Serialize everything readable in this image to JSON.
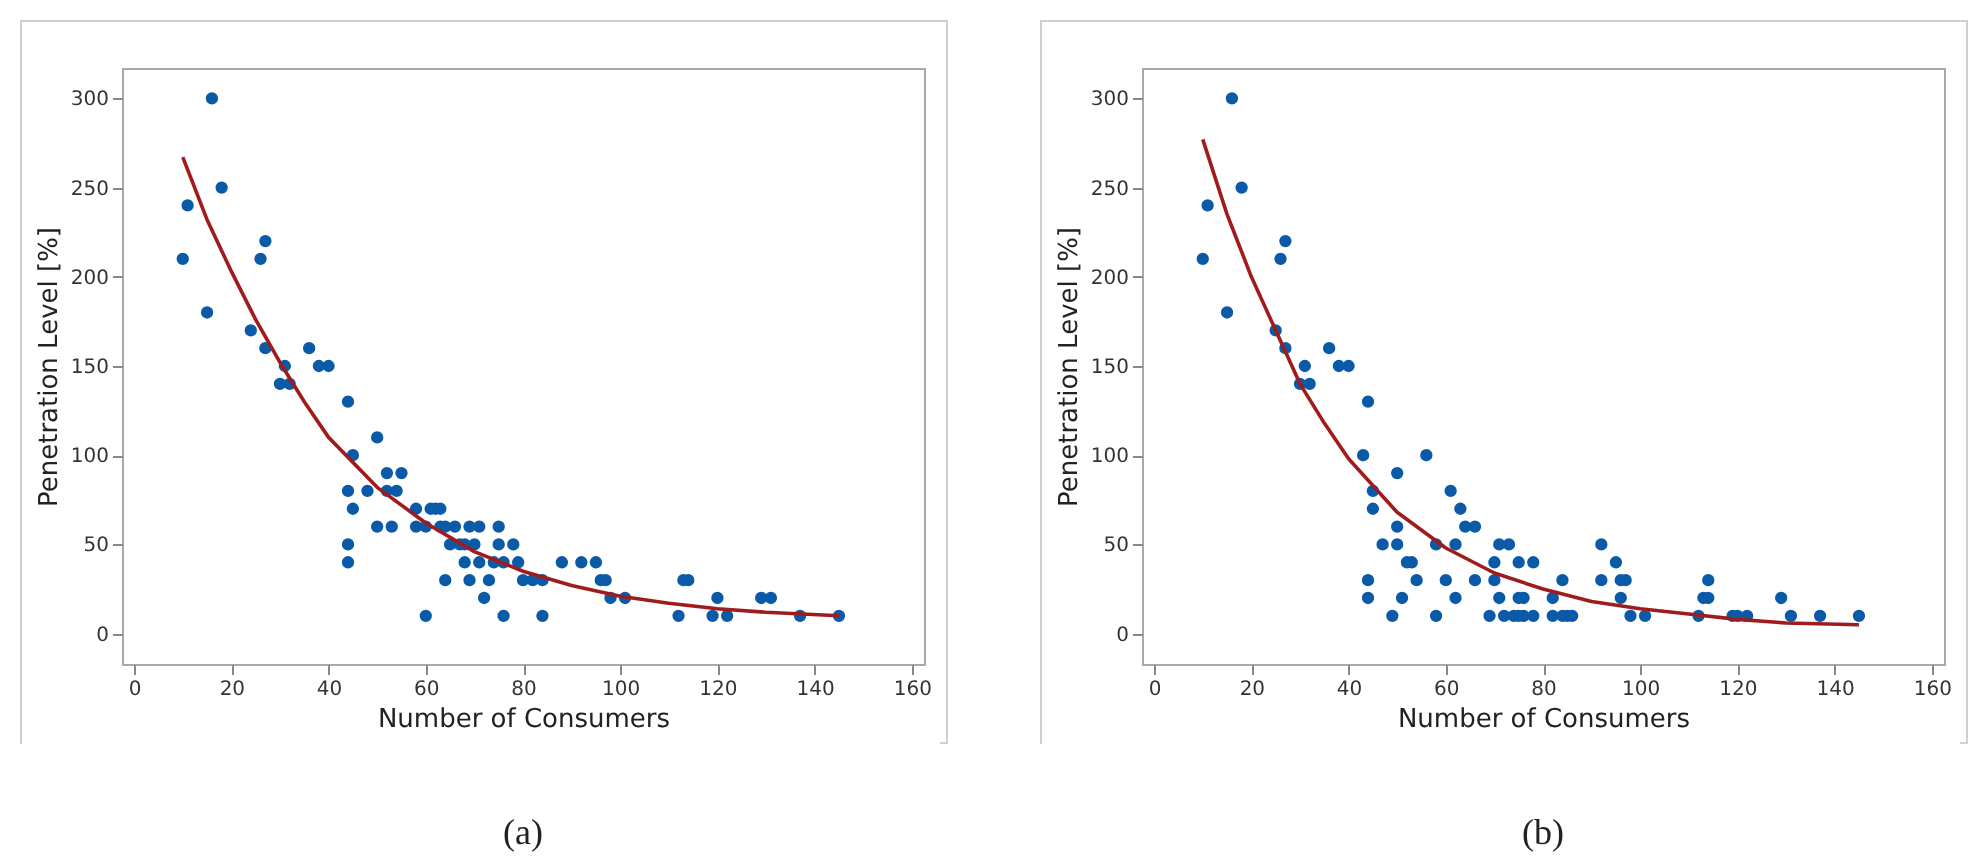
{
  "chart_data": [
    {
      "type": "scatter",
      "title": "(a)",
      "xlabel": "Number of Consumers",
      "ylabel": "Penetration Level [%]",
      "xlim": [
        -2.5,
        162.5
      ],
      "ylim": [
        -17,
        317
      ],
      "xticks": [
        0,
        20,
        40,
        60,
        80,
        100,
        120,
        140,
        160
      ],
      "yticks": [
        0,
        50,
        100,
        150,
        200,
        250,
        300
      ],
      "grid": false,
      "series": [
        {
          "marker": "circle",
          "color": "#0b5aa8",
          "x": [
            10,
            11,
            15,
            16,
            18,
            24,
            26,
            27,
            27,
            30,
            31,
            32,
            36,
            38,
            40,
            44,
            44,
            44,
            44,
            45,
            45,
            48,
            50,
            50,
            52,
            52,
            53,
            54,
            55,
            58,
            58,
            60,
            60,
            61,
            62,
            63,
            63,
            64,
            64,
            65,
            66,
            67,
            68,
            68,
            69,
            69,
            70,
            71,
            71,
            72,
            73,
            74,
            75,
            75,
            76,
            76,
            78,
            79,
            80,
            82,
            84,
            84,
            88,
            92,
            95,
            96,
            97,
            98,
            101,
            112,
            113,
            114,
            119,
            120,
            122,
            129,
            131,
            137,
            145
          ],
          "values": [
            210,
            240,
            180,
            300,
            250,
            170,
            210,
            220,
            160,
            140,
            150,
            140,
            160,
            150,
            150,
            130,
            80,
            50,
            40,
            100,
            70,
            80,
            60,
            110,
            80,
            90,
            60,
            80,
            90,
            70,
            60,
            10,
            60,
            70,
            70,
            60,
            70,
            60,
            30,
            50,
            60,
            50,
            40,
            50,
            60,
            30,
            50,
            40,
            60,
            20,
            30,
            40,
            50,
            60,
            10,
            40,
            50,
            40,
            30,
            30,
            10,
            30,
            40,
            40,
            40,
            30,
            30,
            20,
            20,
            10,
            30,
            30,
            10,
            20,
            10,
            20,
            20,
            10,
            10
          ]
        },
        {
          "type": "line",
          "marker": "none",
          "color": "#a01c1c",
          "x": [
            10,
            15,
            20,
            25,
            30,
            35,
            40,
            50,
            60,
            70,
            80,
            90,
            100,
            110,
            120,
            130,
            145
          ],
          "values": [
            267,
            232,
            203,
            176,
            152,
            130,
            110,
            82,
            62,
            46,
            35,
            27,
            21,
            17,
            14,
            12,
            10
          ]
        }
      ]
    },
    {
      "type": "scatter",
      "title": "(b)",
      "xlabel": "Number of Consumers",
      "ylabel": "Penetration Level [%]",
      "xlim": [
        -2.5,
        162.5
      ],
      "ylim": [
        -17,
        317
      ],
      "xticks": [
        0,
        20,
        40,
        60,
        80,
        100,
        120,
        140,
        160
      ],
      "yticks": [
        0,
        50,
        100,
        150,
        200,
        250,
        300
      ],
      "grid": false,
      "series": [
        {
          "marker": "circle",
          "color": "#0b5aa8",
          "x": [
            10,
            11,
            15,
            16,
            18,
            25,
            26,
            27,
            27,
            30,
            31,
            32,
            36,
            38,
            40,
            44,
            43,
            44,
            44,
            45,
            45,
            47,
            49,
            50,
            50,
            50,
            51,
            52,
            53,
            54,
            56,
            58,
            58,
            60,
            61,
            62,
            62,
            63,
            64,
            66,
            66,
            69,
            70,
            70,
            71,
            71,
            72,
            73,
            74,
            75,
            75,
            75,
            76,
            76,
            78,
            78,
            82,
            82,
            84,
            84,
            85,
            86,
            92,
            92,
            95,
            96,
            97,
            96,
            98,
            101,
            112,
            113,
            114,
            114,
            119,
            120,
            122,
            129,
            131,
            137,
            145
          ],
          "values": [
            210,
            240,
            180,
            300,
            250,
            170,
            210,
            220,
            160,
            140,
            150,
            140,
            160,
            150,
            150,
            130,
            100,
            30,
            20,
            80,
            70,
            50,
            10,
            50,
            60,
            90,
            20,
            40,
            40,
            30,
            100,
            50,
            10,
            30,
            80,
            50,
            20,
            70,
            60,
            60,
            30,
            10,
            30,
            40,
            50,
            20,
            10,
            50,
            10,
            10,
            40,
            20,
            20,
            10,
            40,
            10,
            20,
            10,
            30,
            10,
            10,
            10,
            50,
            30,
            40,
            30,
            30,
            20,
            10,
            10,
            10,
            20,
            20,
            30,
            10,
            10,
            10,
            20,
            10,
            10,
            10
          ]
        },
        {
          "type": "line",
          "marker": "none",
          "color": "#a01c1c",
          "x": [
            10,
            15,
            20,
            25,
            30,
            35,
            40,
            50,
            60,
            70,
            80,
            90,
            100,
            110,
            120,
            130,
            145
          ],
          "values": [
            277,
            235,
            200,
            170,
            140,
            118,
            98,
            68,
            48,
            34,
            25,
            18,
            14,
            11,
            8,
            6,
            5
          ]
        }
      ]
    }
  ]
}
